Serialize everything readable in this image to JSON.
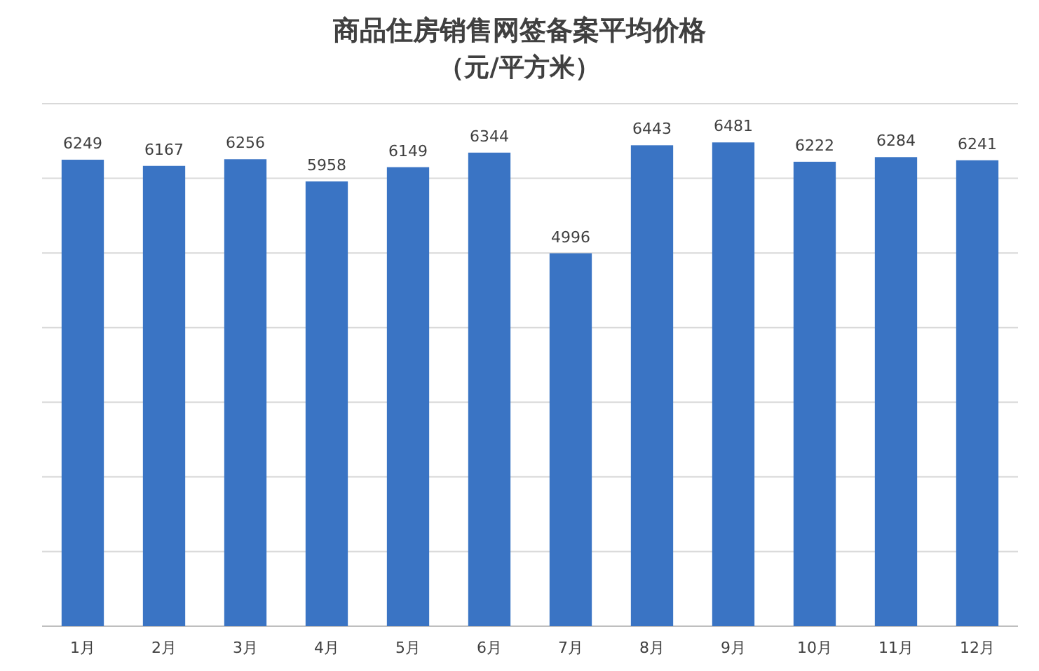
{
  "chart_data": {
    "type": "bar",
    "title": "商品住房销售网签备案平均价格",
    "subtitle": "（元/平方米）",
    "categories": [
      "1月",
      "2月",
      "3月",
      "4月",
      "5月",
      "6月",
      "7月",
      "8月",
      "9月",
      "10月",
      "11月",
      "12月"
    ],
    "values": [
      6249,
      6167,
      6256,
      5958,
      6149,
      6344,
      4996,
      6443,
      6481,
      6222,
      6284,
      6241
    ],
    "color": "#3a74c4",
    "ylim": [
      0,
      7000
    ],
    "yticks": [
      {
        "value": 0,
        "label": null
      },
      {
        "value": 1000,
        "label": null
      },
      {
        "value": 2000,
        "label": null
      },
      {
        "value": 3000,
        "label": null
      },
      {
        "value": 4000,
        "label": null
      },
      {
        "value": 5000,
        "label": null
      },
      {
        "value": 6000,
        "label": null
      },
      {
        "value": 7000,
        "label": null
      }
    ],
    "grid": "y",
    "tick_labels": "x",
    "data_labels": true
  }
}
